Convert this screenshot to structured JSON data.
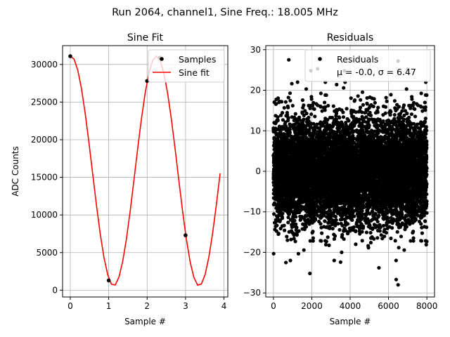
{
  "figure": {
    "suptitle": "Run 2064, channel1, Sine Freq.: 18.005 MHz"
  },
  "chart_data": [
    {
      "type": "line",
      "title": "Sine Fit",
      "xlabel": "Sample #",
      "ylabel": "ADC Counts",
      "xlim": [
        -0.2,
        4.1
      ],
      "ylim": [
        -900,
        32500
      ],
      "xticks": [
        0,
        1,
        2,
        3,
        4
      ],
      "yticks": [
        0,
        5000,
        10000,
        15000,
        20000,
        25000,
        30000
      ],
      "grid": true,
      "legend_position": "top-right",
      "samples": {
        "name": "Samples",
        "color": "#000000",
        "x": [
          0,
          1,
          2,
          2.33,
          3
        ],
        "y": [
          31100,
          1300,
          27800,
          30900,
          7300
        ]
      },
      "fit": {
        "name": "Sine fit",
        "color": "#ff0000",
        "amplitude": 15250,
        "offset": 15850,
        "period_samples": 2.222,
        "phase_rad": 1.517,
        "x_range": [
          0,
          3.9
        ]
      }
    },
    {
      "type": "scatter",
      "title": "Residuals",
      "xlabel": "Sample #",
      "ylabel": "",
      "xlim": [
        -400,
        8400
      ],
      "ylim": [
        -31,
        31
      ],
      "xticks": [
        0,
        2000,
        4000,
        6000,
        8000
      ],
      "yticks": [
        -30,
        -20,
        -10,
        0,
        10,
        20,
        30
      ],
      "grid": true,
      "legend_position": "top-right",
      "series": {
        "name": "Residuals",
        "stats_line": "μ = -0.0, σ = 6.47",
        "color": "#000000",
        "n_points": 8000,
        "mean": 0.0,
        "std": 6.47,
        "outliers": [
          {
            "x": 800,
            "y": 27.5
          },
          {
            "x": 2300,
            "y": 25.3
          },
          {
            "x": 1950,
            "y": 24.8
          },
          {
            "x": 3700,
            "y": 24.8
          },
          {
            "x": 6500,
            "y": 27.2
          },
          {
            "x": 7000,
            "y": 25.2
          },
          {
            "x": 1900,
            "y": -25.2
          },
          {
            "x": 6500,
            "y": -28.0
          },
          {
            "x": 6400,
            "y": -26.7
          },
          {
            "x": 5500,
            "y": -23.8
          },
          {
            "x": 650,
            "y": -22.5
          },
          {
            "x": 3500,
            "y": -22.4
          }
        ]
      }
    }
  ]
}
